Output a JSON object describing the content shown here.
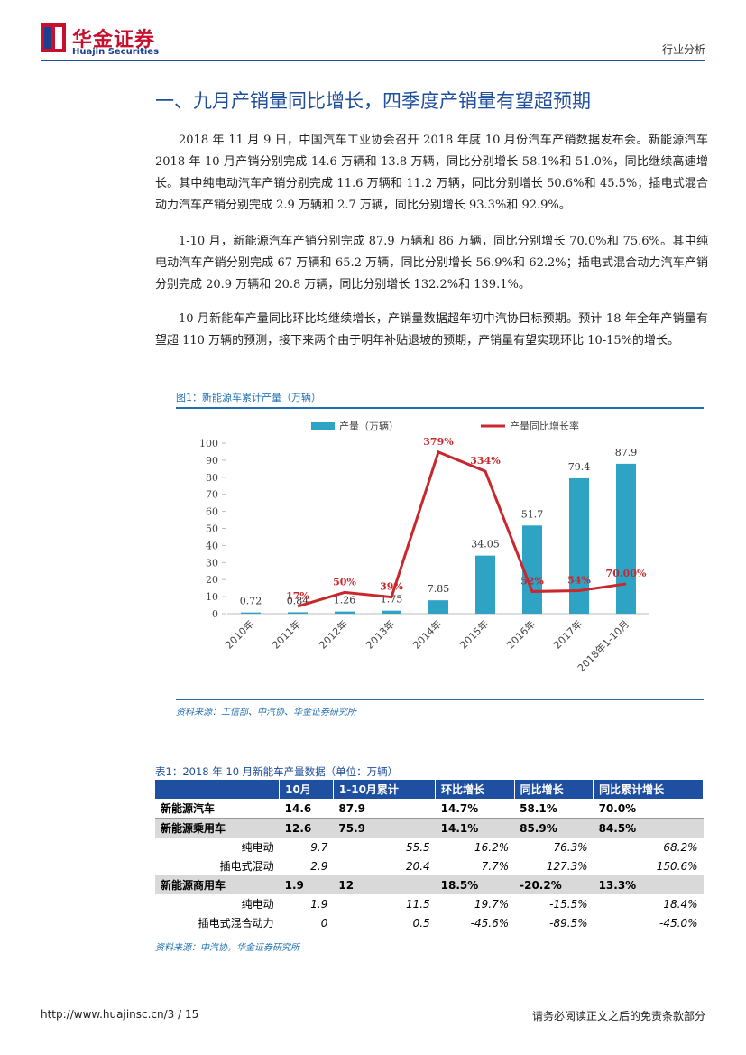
{
  "header": {
    "logo_cn": "华金证券",
    "logo_en": "Huajin Securities",
    "category": "行业分析"
  },
  "section_title": "一、九月产销量同比增长，四季度产销量有望超预期",
  "paragraphs": [
    "2018 年 11 月 9 日，中国汽车工业协会召开 2018 年度 10 月份汽车产销数据发布会。新能源汽车 2018 年 10 月产销分别完成 14.6 万辆和 13.8 万辆，同比分别增长 58.1%和 51.0%，同比继续高速增长。其中纯电动汽车产销分别完成 11.6 万辆和 11.2 万辆，同比分别增长 50.6%和 45.5%；插电式混合动力汽车产销分别完成 2.9 万辆和 2.7 万辆，同比分别增长 93.3%和 92.9%。",
    "1-10 月，新能源汽车产销分别完成 87.9 万辆和 86 万辆，同比分别增长 70.0%和 75.6%。其中纯电动汽车产销分别完成 67 万辆和 65.2 万辆，同比分别增长 56.9%和 62.2%；插电式混合动力汽车产销分别完成 20.9 万辆和 20.8 万辆，同比分别增长 132.2%和 139.1%。",
    "10 月新能车产量同比环比均继续增长，产销量数据超年初中汽协目标预期。预计 18 年全年产销量有望超 110 万辆的预测，接下来两个由于明年补贴退坡的预期，产销量有望实现环比 10-15%的增长。"
  ],
  "figure_title": "图1：新能源车累计产量（万辆）",
  "figure_source": "资料来源：工信部、中汽协、华金证券研究所",
  "chart_data": {
    "type": "bar",
    "categories": [
      "2010年",
      "2011年",
      "2012年",
      "2013年",
      "2014年",
      "2015年",
      "2016年",
      "2017年",
      "2018年1-10月"
    ],
    "series": [
      {
        "name": "产量（万辆）",
        "color": "#2ea3c4",
        "values": [
          0.72,
          0.84,
          1.26,
          1.75,
          7.85,
          34.05,
          51.7,
          79.4,
          87.9
        ]
      },
      {
        "name": "产量同比增长率",
        "color": "#c8282d",
        "type": "line",
        "axis": "y2",
        "values": [
          null,
          17,
          50,
          39,
          379,
          334,
          52,
          54,
          70
        ],
        "value_labels": [
          null,
          "17%",
          "50%",
          "39%",
          "379%",
          "334%",
          "52%",
          "54%",
          "70.00%"
        ]
      }
    ],
    "ylim": [
      0,
      100
    ],
    "yticks": [
      0,
      10,
      20,
      30,
      40,
      50,
      60,
      70,
      80,
      90,
      100
    ],
    "y2lim": [
      0,
      400
    ],
    "legend": "top"
  },
  "table": {
    "title": "表1：2018 年 10 月新能车产量数据（单位：万辆）",
    "headers": [
      "10月",
      "1-10月累计",
      "环比增长",
      "同比增长",
      "同比累计增长"
    ],
    "rows": [
      [
        "新能源汽车",
        "14.6",
        "87.9",
        "14.7%",
        "58.1%",
        "70.0%"
      ],
      [
        "新能源乘用车",
        "12.6",
        "75.9",
        "14.1%",
        "85.9%",
        "84.5%"
      ],
      [
        "纯电动",
        "9.7",
        "55.5",
        "16.2%",
        "76.3%",
        "68.2%"
      ],
      [
        "插电式混动",
        "2.9",
        "20.4",
        "7.7%",
        "127.3%",
        "150.6%"
      ],
      [
        "新能源商用车",
        "1.9",
        "12",
        "18.5%",
        "-20.2%",
        "13.3%"
      ],
      [
        "纯电动",
        "1.9",
        "11.5",
        "19.7%",
        "-15.5%",
        "18.4%"
      ],
      [
        "插电式混合动力",
        "0",
        "0.5",
        "-45.6%",
        "-89.5%",
        "-45.0%"
      ]
    ],
    "source": "资料来源：中汽协，华金证券研究所"
  },
  "footer": {
    "url": "http://www.huajinsc.cn/3 / 15",
    "disclaimer": "请务必阅读正文之后的免责条款部分"
  }
}
